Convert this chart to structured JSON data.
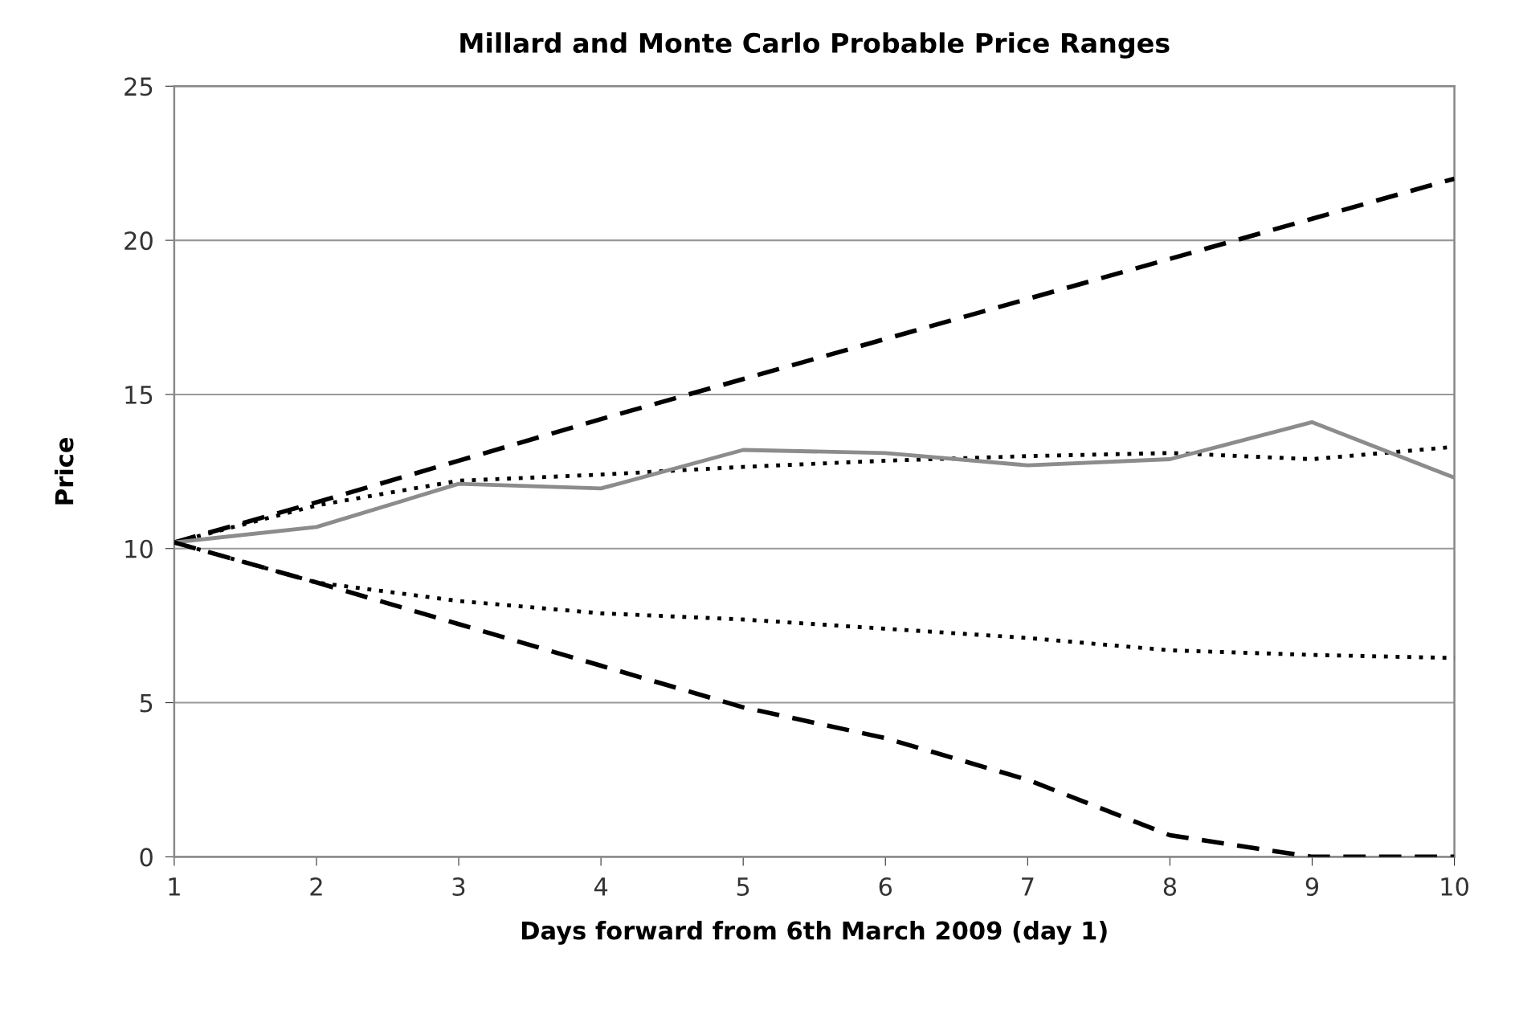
{
  "chart_data": {
    "type": "line",
    "title": "Millard and Monte Carlo Probable Price Ranges",
    "xlabel": "Days forward from 6th March 2009 (day 1)",
    "ylabel": "Price",
    "x": [
      1,
      2,
      3,
      4,
      5,
      6,
      7,
      8,
      9,
      10
    ],
    "series": [
      {
        "color": "#000000",
        "line_style": "dashed",
        "values": [
          10.2,
          11.5,
          12.85,
          14.2,
          15.5,
          16.8,
          18.1,
          19.4,
          20.7,
          22.0
        ]
      },
      {
        "color": "#000000",
        "line_style": "dotted",
        "values": [
          10.2,
          11.4,
          12.2,
          12.4,
          12.65,
          12.85,
          13.0,
          13.1,
          12.9,
          13.3
        ]
      },
      {
        "color": "#8c8c8c",
        "line_style": "solid",
        "values": [
          10.2,
          10.7,
          12.1,
          11.95,
          13.2,
          13.1,
          12.7,
          12.9,
          14.1,
          12.3
        ]
      },
      {
        "color": "#000000",
        "line_style": "dotted",
        "values": [
          10.2,
          8.9,
          8.3,
          7.9,
          7.7,
          7.4,
          7.1,
          6.7,
          6.55,
          6.45
        ]
      },
      {
        "color": "#000000",
        "line_style": "dashed",
        "values": [
          10.2,
          8.9,
          7.55,
          6.2,
          4.85,
          3.85,
          2.5,
          0.7,
          0.0,
          0.0
        ]
      }
    ],
    "xlim": [
      1,
      10
    ],
    "xticks": [
      1,
      2,
      3,
      4,
      5,
      6,
      7,
      8,
      9,
      10
    ],
    "ylim": [
      0,
      25
    ],
    "yticks": [
      0,
      5,
      10,
      15,
      20,
      25
    ],
    "grid": "y",
    "legend": false
  }
}
